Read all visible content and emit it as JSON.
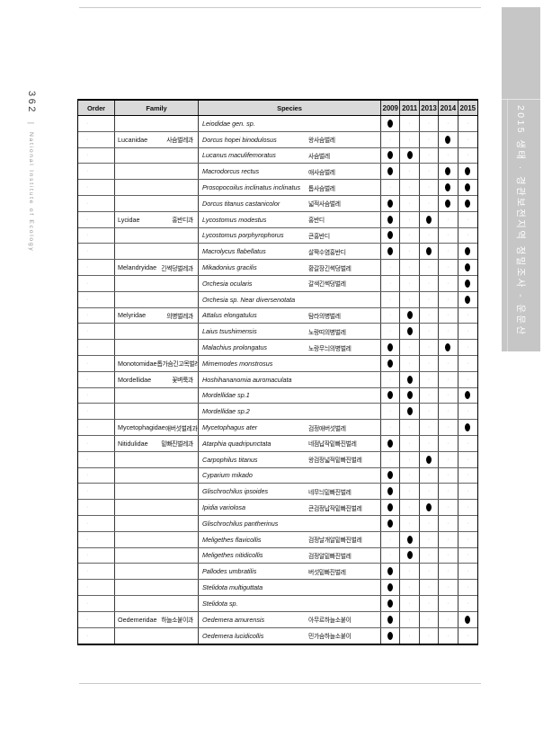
{
  "page": {
    "number": "362",
    "margin_separator": "|",
    "margin_note": "National Institute of Ecology",
    "sidebar_title": "2015 생태 · 경관보전지역 정밀조사 - 운문산"
  },
  "colors": {
    "sidebar_bg": "#c6c6c6",
    "table_header_bg": "#d9d9d9",
    "presence_dot": "#000000"
  },
  "table": {
    "headers": {
      "order": "Order",
      "family": "Family",
      "species": "Species",
      "years": [
        "2009",
        "2011",
        "2013",
        "2014",
        "2015"
      ]
    },
    "rows": [
      {
        "order": "",
        "family_la": "",
        "family_ko": "",
        "species_la": "Leiodidae gen. sp.",
        "species_ko": "",
        "marks": [
          1,
          0,
          0,
          0,
          0
        ]
      },
      {
        "order": "",
        "family_la": "Lucanidae",
        "family_ko": "사슴벌레과",
        "species_la": "Dorcus hopei binodulosus",
        "species_ko": "왕사슴벌레",
        "marks": [
          0,
          0,
          0,
          1,
          0
        ]
      },
      {
        "order": "",
        "family_la": "",
        "family_ko": "",
        "species_la": "Lucanus maculifemoratus",
        "species_ko": "사슴벌레",
        "marks": [
          1,
          1,
          0,
          0,
          0
        ]
      },
      {
        "order": "",
        "family_la": "",
        "family_ko": "",
        "species_la": "Macrodorcus rectus",
        "species_ko": "애사슴벌레",
        "marks": [
          1,
          0,
          0,
          1,
          1
        ]
      },
      {
        "order": "",
        "family_la": "",
        "family_ko": "",
        "species_la": "Prosopocoilus inclinatus inclinatus",
        "species_ko": "톱사슴벌레",
        "marks": [
          0,
          0,
          0,
          1,
          1
        ]
      },
      {
        "order": "",
        "family_la": "",
        "family_ko": "",
        "species_la": "Dorcus titanus castanicolor",
        "species_ko": "넓적사슴벌레",
        "marks": [
          1,
          0,
          0,
          1,
          1
        ]
      },
      {
        "order": "",
        "family_la": "Lycidae",
        "family_ko": "홍반디과",
        "species_la": "Lycostomus modestus",
        "species_ko": "홍반디",
        "marks": [
          1,
          0,
          1,
          0,
          0
        ]
      },
      {
        "order": "",
        "family_la": "",
        "family_ko": "",
        "species_la": "Lycostomus porphyrophorus",
        "species_ko": "큰홍반디",
        "marks": [
          1,
          0,
          0,
          0,
          0
        ]
      },
      {
        "order": "",
        "family_la": "",
        "family_ko": "",
        "species_la": "Macrolycus flabellatus",
        "species_ko": "살짝수염홍반디",
        "marks": [
          1,
          0,
          1,
          0,
          1
        ]
      },
      {
        "order": "",
        "family_la": "Melandryidae",
        "family_ko": "긴썩덩벌레과",
        "species_la": "Mikadonius gracilis",
        "species_ko": "황갈장긴썩덩벌레",
        "marks": [
          0,
          0,
          0,
          0,
          1
        ]
      },
      {
        "order": "",
        "family_la": "",
        "family_ko": "",
        "species_la": "Orchesia ocularis",
        "species_ko": "갈색긴썩덩벌레",
        "marks": [
          0,
          0,
          0,
          0,
          1
        ]
      },
      {
        "order": "",
        "family_la": "",
        "family_ko": "",
        "species_la": "Orchesia sp. Near diversenotata",
        "species_ko": "",
        "marks": [
          0,
          0,
          0,
          0,
          1
        ]
      },
      {
        "order": "",
        "family_la": "Melyridae",
        "family_ko": "의병벌레과",
        "species_la": "Attalus elongatulus",
        "species_ko": "탐라의병벌레",
        "marks": [
          0,
          1,
          0,
          0,
          0
        ]
      },
      {
        "order": "",
        "family_la": "",
        "family_ko": "",
        "species_la": "Laius tsushimensis",
        "species_ko": "노랑띠의병벌레",
        "marks": [
          0,
          1,
          0,
          0,
          0
        ]
      },
      {
        "order": "",
        "family_la": "",
        "family_ko": "",
        "species_la": "Malachius prolongatus",
        "species_ko": "노랑무늬의병벌레",
        "marks": [
          1,
          0,
          0,
          1,
          0
        ]
      },
      {
        "order": "",
        "family_la": "Monotomidae",
        "family_ko": "톱가슴긴고목벌레과",
        "species_la": "Mimemodes monstrosus",
        "species_ko": "",
        "marks": [
          1,
          0,
          0,
          0,
          0
        ]
      },
      {
        "order": "",
        "family_la": "Mordellidae",
        "family_ko": "꽃벼룩과",
        "species_la": "Hoshihananomia auromaculata",
        "species_ko": "",
        "marks": [
          0,
          1,
          0,
          0,
          0
        ]
      },
      {
        "order": "",
        "family_la": "",
        "family_ko": "",
        "species_la": "Mordellidae sp.1",
        "species_ko": "",
        "marks": [
          1,
          1,
          0,
          0,
          1
        ]
      },
      {
        "order": "",
        "family_la": "",
        "family_ko": "",
        "species_la": "Mordellidae sp.2",
        "species_ko": "",
        "marks": [
          0,
          1,
          0,
          0,
          0
        ]
      },
      {
        "order": "",
        "family_la": "Mycetophagidae",
        "family_ko": "애버섯벌레과",
        "species_la": "Mycetophagus ater",
        "species_ko": "검정애버섯벌레",
        "marks": [
          0,
          0,
          0,
          0,
          1
        ]
      },
      {
        "order": "",
        "family_la": "Nitidulidae",
        "family_ko": "밑빠진벌레과",
        "species_la": "Atarphia quadripunctata",
        "species_ko": "네점납작밑빠진벌레",
        "marks": [
          1,
          0,
          0,
          0,
          0
        ]
      },
      {
        "order": "",
        "family_la": "",
        "family_ko": "",
        "species_la": "Carpophilus titanus",
        "species_ko": "왕검정넓적밑빠진벌레",
        "marks": [
          0,
          0,
          1,
          0,
          0
        ]
      },
      {
        "order": "",
        "family_la": "",
        "family_ko": "",
        "species_la": "Cyparium mikado",
        "species_ko": "",
        "marks": [
          1,
          0,
          0,
          0,
          0
        ]
      },
      {
        "order": "",
        "family_la": "",
        "family_ko": "",
        "species_la": "Glischrochilus ipsoides",
        "species_ko": "네무늬밑빠진벌레",
        "marks": [
          1,
          0,
          0,
          0,
          0
        ]
      },
      {
        "order": "",
        "family_la": "",
        "family_ko": "",
        "species_la": "Ipidia variolosa",
        "species_ko": "큰검정납작밑빠진벌레",
        "marks": [
          1,
          0,
          1,
          0,
          0
        ]
      },
      {
        "order": "",
        "family_la": "",
        "family_ko": "",
        "species_la": "Glischrochilus pantherinus",
        "species_ko": "",
        "marks": [
          1,
          0,
          0,
          0,
          0
        ]
      },
      {
        "order": "",
        "family_la": "",
        "family_ko": "",
        "species_la": "Meligethes flavicollis",
        "species_ko": "검정날개알밑빠진벌레",
        "marks": [
          0,
          1,
          0,
          0,
          0
        ]
      },
      {
        "order": "",
        "family_la": "",
        "family_ko": "",
        "species_la": "Meligethes nitidicollis",
        "species_ko": "검정알밑빠진벌레",
        "marks": [
          0,
          1,
          0,
          0,
          0
        ]
      },
      {
        "order": "",
        "family_la": "",
        "family_ko": "",
        "species_la": "Pallodes umbratilis",
        "species_ko": "버섯밑빠진벌레",
        "marks": [
          1,
          0,
          0,
          0,
          0
        ]
      },
      {
        "order": "",
        "family_la": "",
        "family_ko": "",
        "species_la": "Stelidota multiguttata",
        "species_ko": "",
        "marks": [
          1,
          0,
          0,
          0,
          0
        ]
      },
      {
        "order": "",
        "family_la": "",
        "family_ko": "",
        "species_la": "Stelidota sp.",
        "species_ko": "",
        "marks": [
          1,
          0,
          0,
          0,
          0
        ]
      },
      {
        "order": "",
        "family_la": "Oedemeridae",
        "family_ko": "하늘소붙이과",
        "species_la": "Oedemera amurensis",
        "species_ko": "아무르하늘소붙이",
        "marks": [
          1,
          0,
          0,
          0,
          1
        ]
      },
      {
        "order": "",
        "family_la": "",
        "family_ko": "",
        "species_la": "Oedemera lucidicollis",
        "species_ko": "민가슴하늘소붙이",
        "marks": [
          1,
          0,
          0,
          0,
          0
        ]
      }
    ]
  }
}
